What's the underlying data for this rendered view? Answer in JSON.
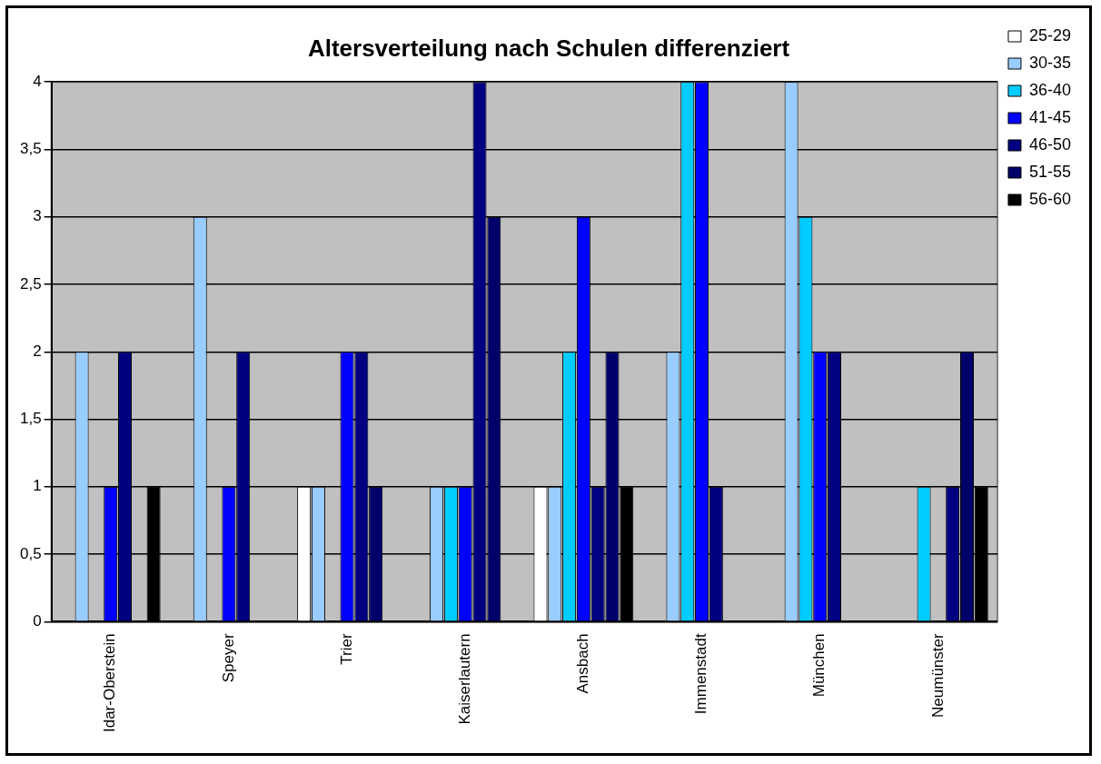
{
  "chart_data": {
    "type": "bar",
    "title": "Altersverteilung nach Schulen differenziert",
    "categories": [
      "Idar-Oberstein",
      "Speyer",
      "Trier",
      "Kaiserlautern",
      "Ansbach",
      "Immenstadt",
      "München",
      "Neumünster"
    ],
    "series": [
      {
        "name": "25-29",
        "color": "#ffffff",
        "values": [
          0,
          0,
          1,
          0,
          1,
          0,
          0,
          0
        ]
      },
      {
        "name": "30-35",
        "color": "#99ccff",
        "values": [
          2,
          3,
          1,
          1,
          1,
          2,
          4,
          0
        ]
      },
      {
        "name": "36-40",
        "color": "#00ccff",
        "values": [
          0,
          0,
          0,
          1,
          2,
          4,
          3,
          1
        ]
      },
      {
        "name": "41-45",
        "color": "#0000ff",
        "values": [
          1,
          1,
          2,
          1,
          3,
          4,
          2,
          0
        ]
      },
      {
        "name": "46-50",
        "color": "#000080",
        "values": [
          2,
          2,
          2,
          4,
          1,
          1,
          2,
          1
        ]
      },
      {
        "name": "51-55",
        "color": "#00006a",
        "values": [
          0,
          0,
          1,
          3,
          2,
          0,
          0,
          2
        ]
      },
      {
        "name": "56-60",
        "color": "#000000",
        "values": [
          1,
          0,
          0,
          0,
          1,
          0,
          0,
          1
        ]
      }
    ],
    "ylim": [
      0,
      4
    ],
    "yticks": [
      0,
      {
        "value": 0.5,
        "label": "0,5"
      },
      1,
      {
        "value": 1.5,
        "label": "1,5"
      },
      2,
      {
        "value": 2.5,
        "label": "2,5"
      },
      3,
      {
        "value": 3.5,
        "label": "3,5"
      },
      4
    ],
    "grid": "y",
    "legend": "top right"
  }
}
